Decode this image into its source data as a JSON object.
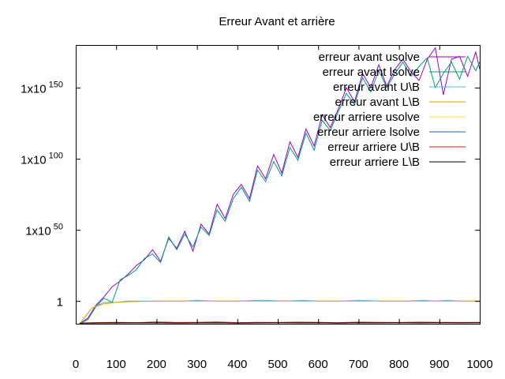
{
  "chart_data": {
    "type": "line",
    "title": "Erreur Avant et arrière",
    "xlabel": "",
    "ylabel": "",
    "y_scale": "log10",
    "xlim": [
      0,
      1000
    ],
    "ylim_log10": [
      -16,
      180
    ],
    "x_ticks": [
      {
        "value": 0,
        "label": "0"
      },
      {
        "value": 100,
        "label": "100"
      },
      {
        "value": 200,
        "label": "200"
      },
      {
        "value": 300,
        "label": "300"
      },
      {
        "value": 400,
        "label": "400"
      },
      {
        "value": 500,
        "label": "500"
      },
      {
        "value": 600,
        "label": "600"
      },
      {
        "value": 700,
        "label": "700"
      },
      {
        "value": 800,
        "label": "800"
      },
      {
        "value": 900,
        "label": "900"
      },
      {
        "value": 1000,
        "label": "1000"
      }
    ],
    "y_ticks": [
      {
        "log10": 0,
        "base": "1",
        "exp": ""
      },
      {
        "log10": 50,
        "base": "1x10",
        "exp": "50"
      },
      {
        "log10": 100,
        "base": "1x10",
        "exp": "100"
      },
      {
        "log10": 150,
        "base": "1x10",
        "exp": "150"
      }
    ],
    "legend_position": "top-right",
    "grid": false,
    "series": [
      {
        "name": "erreur avant usolve",
        "color": "#9400d3",
        "x": [
          10,
          30,
          50,
          70,
          90,
          110,
          130,
          150,
          170,
          190,
          210,
          230,
          250,
          270,
          290,
          310,
          330,
          350,
          370,
          390,
          410,
          430,
          450,
          470,
          490,
          510,
          530,
          550,
          570,
          590,
          610,
          630,
          650,
          670,
          690,
          710,
          730,
          750,
          770,
          790,
          810,
          830,
          850,
          870,
          890,
          910,
          930,
          950,
          970,
          990,
          1000
        ],
        "log10_values": [
          -16,
          -12,
          -3,
          3,
          10,
          14,
          19,
          25,
          29,
          36,
          28,
          44,
          37,
          49,
          35,
          54,
          47,
          68,
          58,
          75,
          82,
          72,
          95,
          86,
          103,
          90,
          112,
          101,
          121,
          109,
          131,
          122,
          135,
          150,
          140,
          160,
          150,
          166,
          151,
          163,
          170,
          161,
          155,
          170,
          178,
          145,
          170,
          172,
          158,
          175,
          163
        ]
      },
      {
        "name": "erreur avant lsolve",
        "color": "#009e73",
        "x": [
          10,
          30,
          50,
          70,
          90,
          110,
          130,
          150,
          170,
          190,
          210,
          230,
          250,
          270,
          290,
          310,
          330,
          350,
          370,
          390,
          410,
          430,
          450,
          470,
          490,
          510,
          530,
          550,
          570,
          590,
          610,
          630,
          650,
          670,
          690,
          710,
          730,
          750,
          770,
          790,
          810,
          830,
          850,
          870,
          890,
          910,
          930,
          950,
          970,
          990,
          1000
        ],
        "log10_values": [
          -16,
          -13,
          -4,
          2,
          -1,
          15,
          18,
          22,
          30,
          33,
          27,
          45,
          36,
          47,
          38,
          52,
          46,
          64,
          56,
          72,
          80,
          70,
          92,
          84,
          98,
          88,
          108,
          99,
          118,
          106,
          127,
          120,
          133,
          146,
          138,
          157,
          147,
          162,
          150,
          160,
          168,
          158,
          165,
          171,
          150,
          160,
          168,
          156,
          172,
          162,
          168
        ]
      },
      {
        "name": "erreur avant U\\B",
        "color": "#56b4e9",
        "x": [
          10,
          40,
          70,
          100,
          130,
          200,
          270,
          300,
          340,
          400,
          460,
          520,
          560,
          600,
          660,
          700,
          760,
          820,
          860,
          890,
          920,
          950,
          980,
          1000
        ],
        "log10_values": [
          -16,
          -5,
          -1,
          -1,
          0,
          0,
          0,
          0.5,
          0,
          0,
          0.5,
          0,
          0.5,
          0,
          0,
          0.5,
          0,
          0,
          0.5,
          0,
          0.5,
          0,
          0,
          0
        ]
      },
      {
        "name": "erreur avant L\\B",
        "color": "#e69f00",
        "x": [
          10,
          40,
          70,
          100,
          130,
          200,
          270,
          300,
          340,
          400,
          460,
          520,
          560,
          600,
          660,
          700,
          760,
          820,
          860,
          890,
          920,
          950,
          980,
          1000
        ],
        "log10_values": [
          -16,
          -5,
          -2,
          -1,
          -0.5,
          0,
          0,
          0,
          0,
          0,
          0,
          0,
          0,
          0,
          0,
          0,
          0,
          0,
          0,
          0,
          0,
          0,
          0,
          0
        ]
      },
      {
        "name": "erreur arriere usolve",
        "color": "#f0e442",
        "x": [
          10,
          50,
          100,
          150,
          200,
          250,
          300,
          350,
          400,
          450,
          500,
          550,
          600,
          650,
          700,
          750,
          800,
          850,
          900,
          950,
          1000
        ],
        "log10_values": [
          -15.5,
          -15.3,
          -16,
          -16.5,
          -16.2,
          -17,
          -16.5,
          -17,
          -16.8,
          -17.2,
          -17,
          -17.5,
          -17,
          -17.3,
          -17.5,
          -17,
          -17.6,
          -17.2,
          -17.4,
          -17.8,
          -17.5
        ]
      },
      {
        "name": "erreur arriere lsolve",
        "color": "#0072b2",
        "x": [
          100,
          120,
          140,
          160,
          180,
          200,
          220,
          240,
          260,
          280,
          300,
          320,
          340,
          360,
          380,
          400,
          420,
          440,
          450,
          460,
          480,
          500,
          520,
          540,
          560,
          580,
          600,
          620,
          640,
          660,
          680,
          700,
          720,
          740,
          760,
          780,
          800,
          820,
          840,
          860,
          880,
          900,
          920,
          940,
          960,
          980,
          1000
        ],
        "log10_values": [
          -18,
          -17.5,
          -19,
          -18,
          -19,
          -18.5,
          -20,
          -19,
          -21,
          -20,
          -24,
          -20,
          -19,
          -21,
          -20,
          -19,
          -22,
          -20,
          -31,
          -20,
          -21,
          -25,
          -20,
          -23,
          -20,
          -22,
          -20,
          -19,
          -22,
          -20,
          -21,
          -20,
          -20,
          -21,
          -20,
          -24,
          -22,
          -20,
          -23,
          -21,
          -27,
          -21,
          -25,
          -21,
          -22,
          -27,
          -19
        ]
      },
      {
        "name": "erreur arriere U\\B",
        "color": "#e51e10",
        "x": [
          10,
          50,
          100,
          150,
          200,
          250,
          300,
          350,
          400,
          450,
          500,
          550,
          600,
          650,
          700,
          750,
          800,
          850,
          900,
          950,
          1000
        ],
        "log10_values": [
          -15.5,
          -15.2,
          -15,
          -15.2,
          -14.8,
          -15.1,
          -15,
          -14.8,
          -15.2,
          -15,
          -15.1,
          -14.9,
          -15,
          -15.2,
          -14.9,
          -15,
          -15.1,
          -14.9,
          -15,
          -15.1,
          -15
        ]
      },
      {
        "name": "erreur arriere L\\B",
        "color": "#000000",
        "x": [
          10,
          50,
          100,
          150,
          200,
          250,
          300,
          350,
          400,
          450,
          500,
          550,
          600,
          650,
          700,
          750,
          800,
          850,
          900,
          950,
          1000
        ],
        "log10_values": [
          -15.6,
          -15.5,
          -15.3,
          -15.4,
          -15.3,
          -15.5,
          -15.4,
          -15.3,
          -15.5,
          -15.4,
          -15.3,
          -15.4,
          -15.3,
          -15.5,
          -15.3,
          -15.4,
          -15.3,
          -15.4,
          -15.3,
          -15.4,
          -15.3
        ]
      }
    ]
  }
}
